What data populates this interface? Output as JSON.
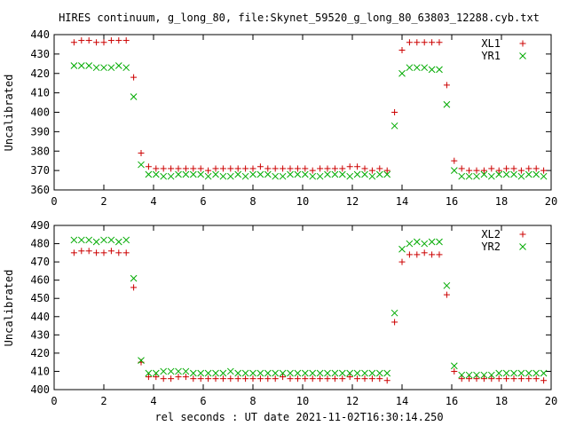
{
  "chart_data": [
    {
      "type": "scatter",
      "title": "HIRES continuum, g_long_80, file:Skynet_59520_g_long_80_63803_12288.cyb.txt",
      "ylabel": "Uncalibrated",
      "xlim": [
        0,
        20
      ],
      "ylim": [
        360,
        440
      ],
      "xticks": [
        0,
        2,
        4,
        6,
        8,
        10,
        12,
        14,
        16,
        18,
        20
      ],
      "yticks": [
        360,
        370,
        380,
        390,
        400,
        410,
        420,
        430,
        440
      ],
      "legend_position": "top-right",
      "grid": false,
      "series": [
        {
          "name": "XL1",
          "marker": "+",
          "color": "#cc0000",
          "x": [
            0.8,
            1.1,
            1.4,
            1.7,
            2.0,
            2.3,
            2.6,
            2.9,
            3.2,
            3.5,
            3.8,
            4.1,
            4.4,
            4.7,
            5.0,
            5.3,
            5.6,
            5.9,
            6.2,
            6.5,
            6.8,
            7.1,
            7.4,
            7.7,
            8.0,
            8.3,
            8.6,
            8.9,
            9.2,
            9.5,
            9.8,
            10.1,
            10.4,
            10.7,
            11.0,
            11.3,
            11.6,
            11.9,
            12.2,
            12.5,
            12.8,
            13.1,
            13.4,
            13.7,
            14.0,
            14.3,
            14.6,
            14.9,
            15.2,
            15.5,
            15.8,
            16.1,
            16.4,
            16.7,
            17.0,
            17.3,
            17.6,
            17.9,
            18.2,
            18.5,
            18.8,
            19.1,
            19.4,
            19.7
          ],
          "y": [
            436,
            437,
            437,
            436,
            436,
            437,
            437,
            437,
            418,
            379,
            372,
            371,
            371,
            371,
            371,
            371,
            371,
            371,
            370,
            371,
            371,
            371,
            371,
            371,
            371,
            372,
            371,
            371,
            371,
            371,
            371,
            371,
            370,
            371,
            371,
            371,
            371,
            372,
            372,
            371,
            370,
            371,
            370,
            400,
            432,
            436,
            436,
            436,
            436,
            436,
            414,
            375,
            371,
            370,
            370,
            370,
            371,
            370,
            371,
            371,
            370,
            371,
            371,
            370
          ]
        },
        {
          "name": "YR1",
          "marker": "x",
          "color": "#00aa00",
          "x": [
            0.8,
            1.1,
            1.4,
            1.7,
            2.0,
            2.3,
            2.6,
            2.9,
            3.2,
            3.5,
            3.8,
            4.1,
            4.4,
            4.7,
            5.0,
            5.3,
            5.6,
            5.9,
            6.2,
            6.5,
            6.8,
            7.1,
            7.4,
            7.7,
            8.0,
            8.3,
            8.6,
            8.9,
            9.2,
            9.5,
            9.8,
            10.1,
            10.4,
            10.7,
            11.0,
            11.3,
            11.6,
            11.9,
            12.2,
            12.5,
            12.8,
            13.1,
            13.4,
            13.7,
            14.0,
            14.3,
            14.6,
            14.9,
            15.2,
            15.5,
            15.8,
            16.1,
            16.4,
            16.7,
            17.0,
            17.3,
            17.6,
            17.9,
            18.2,
            18.5,
            18.8,
            19.1,
            19.4,
            19.7
          ],
          "y": [
            424,
            424,
            424,
            423,
            423,
            423,
            424,
            423,
            408,
            373,
            368,
            368,
            367,
            367,
            368,
            368,
            368,
            368,
            367,
            368,
            367,
            367,
            368,
            367,
            368,
            368,
            368,
            367,
            367,
            368,
            368,
            368,
            367,
            367,
            368,
            368,
            368,
            367,
            368,
            368,
            367,
            368,
            368,
            393,
            420,
            423,
            423,
            423,
            422,
            422,
            404,
            370,
            367,
            367,
            367,
            368,
            367,
            368,
            368,
            368,
            367,
            368,
            368,
            367
          ]
        }
      ]
    },
    {
      "type": "scatter",
      "title": "",
      "xlabel": "rel seconds : UT date 2021-11-02T16:30:14.250",
      "ylabel": "Uncalibrated",
      "xlim": [
        0,
        20
      ],
      "ylim": [
        400,
        490
      ],
      "xticks": [
        0,
        2,
        4,
        6,
        8,
        10,
        12,
        14,
        16,
        18,
        20
      ],
      "yticks": [
        400,
        410,
        420,
        430,
        440,
        450,
        460,
        470,
        480,
        490
      ],
      "legend_position": "top-right",
      "grid": false,
      "series": [
        {
          "name": "XL2",
          "marker": "+",
          "color": "#cc0000",
          "x": [
            0.8,
            1.1,
            1.4,
            1.7,
            2.0,
            2.3,
            2.6,
            2.9,
            3.2,
            3.5,
            3.8,
            4.1,
            4.4,
            4.7,
            5.0,
            5.3,
            5.6,
            5.9,
            6.2,
            6.5,
            6.8,
            7.1,
            7.4,
            7.7,
            8.0,
            8.3,
            8.6,
            8.9,
            9.2,
            9.5,
            9.8,
            10.1,
            10.4,
            10.7,
            11.0,
            11.3,
            11.6,
            11.9,
            12.2,
            12.5,
            12.8,
            13.1,
            13.4,
            13.7,
            14.0,
            14.3,
            14.6,
            14.9,
            15.2,
            15.5,
            15.8,
            16.1,
            16.4,
            16.7,
            17.0,
            17.3,
            17.6,
            17.9,
            18.2,
            18.5,
            18.8,
            19.1,
            19.4,
            19.7
          ],
          "y": [
            475,
            476,
            476,
            475,
            475,
            476,
            475,
            475,
            456,
            415,
            407,
            407,
            406,
            406,
            407,
            407,
            406,
            406,
            406,
            406,
            406,
            406,
            406,
            406,
            406,
            406,
            406,
            406,
            407,
            406,
            406,
            406,
            406,
            406,
            406,
            406,
            406,
            407,
            406,
            406,
            406,
            406,
            405,
            437,
            470,
            474,
            474,
            475,
            474,
            474,
            452,
            410,
            406,
            406,
            406,
            406,
            406,
            406,
            406,
            406,
            406,
            406,
            406,
            405
          ]
        },
        {
          "name": "YR2",
          "marker": "x",
          "color": "#00aa00",
          "x": [
            0.8,
            1.1,
            1.4,
            1.7,
            2.0,
            2.3,
            2.6,
            2.9,
            3.2,
            3.5,
            3.8,
            4.1,
            4.4,
            4.7,
            5.0,
            5.3,
            5.6,
            5.9,
            6.2,
            6.5,
            6.8,
            7.1,
            7.4,
            7.7,
            8.0,
            8.3,
            8.6,
            8.9,
            9.2,
            9.5,
            9.8,
            10.1,
            10.4,
            10.7,
            11.0,
            11.3,
            11.6,
            11.9,
            12.2,
            12.5,
            12.8,
            13.1,
            13.4,
            13.7,
            14.0,
            14.3,
            14.6,
            14.9,
            15.2,
            15.5,
            15.8,
            16.1,
            16.4,
            16.7,
            17.0,
            17.3,
            17.6,
            17.9,
            18.2,
            18.5,
            18.8,
            19.1,
            19.4,
            19.7
          ],
          "y": [
            482,
            482,
            482,
            481,
            482,
            482,
            481,
            482,
            461,
            416,
            409,
            409,
            410,
            410,
            410,
            410,
            409,
            409,
            409,
            409,
            409,
            410,
            409,
            409,
            409,
            409,
            409,
            409,
            409,
            409,
            409,
            409,
            409,
            409,
            409,
            409,
            409,
            409,
            409,
            409,
            409,
            409,
            409,
            442,
            477,
            480,
            481,
            480,
            481,
            481,
            457,
            413,
            408,
            408,
            408,
            408,
            408,
            409,
            409,
            409,
            409,
            409,
            409,
            409
          ]
        }
      ]
    }
  ]
}
